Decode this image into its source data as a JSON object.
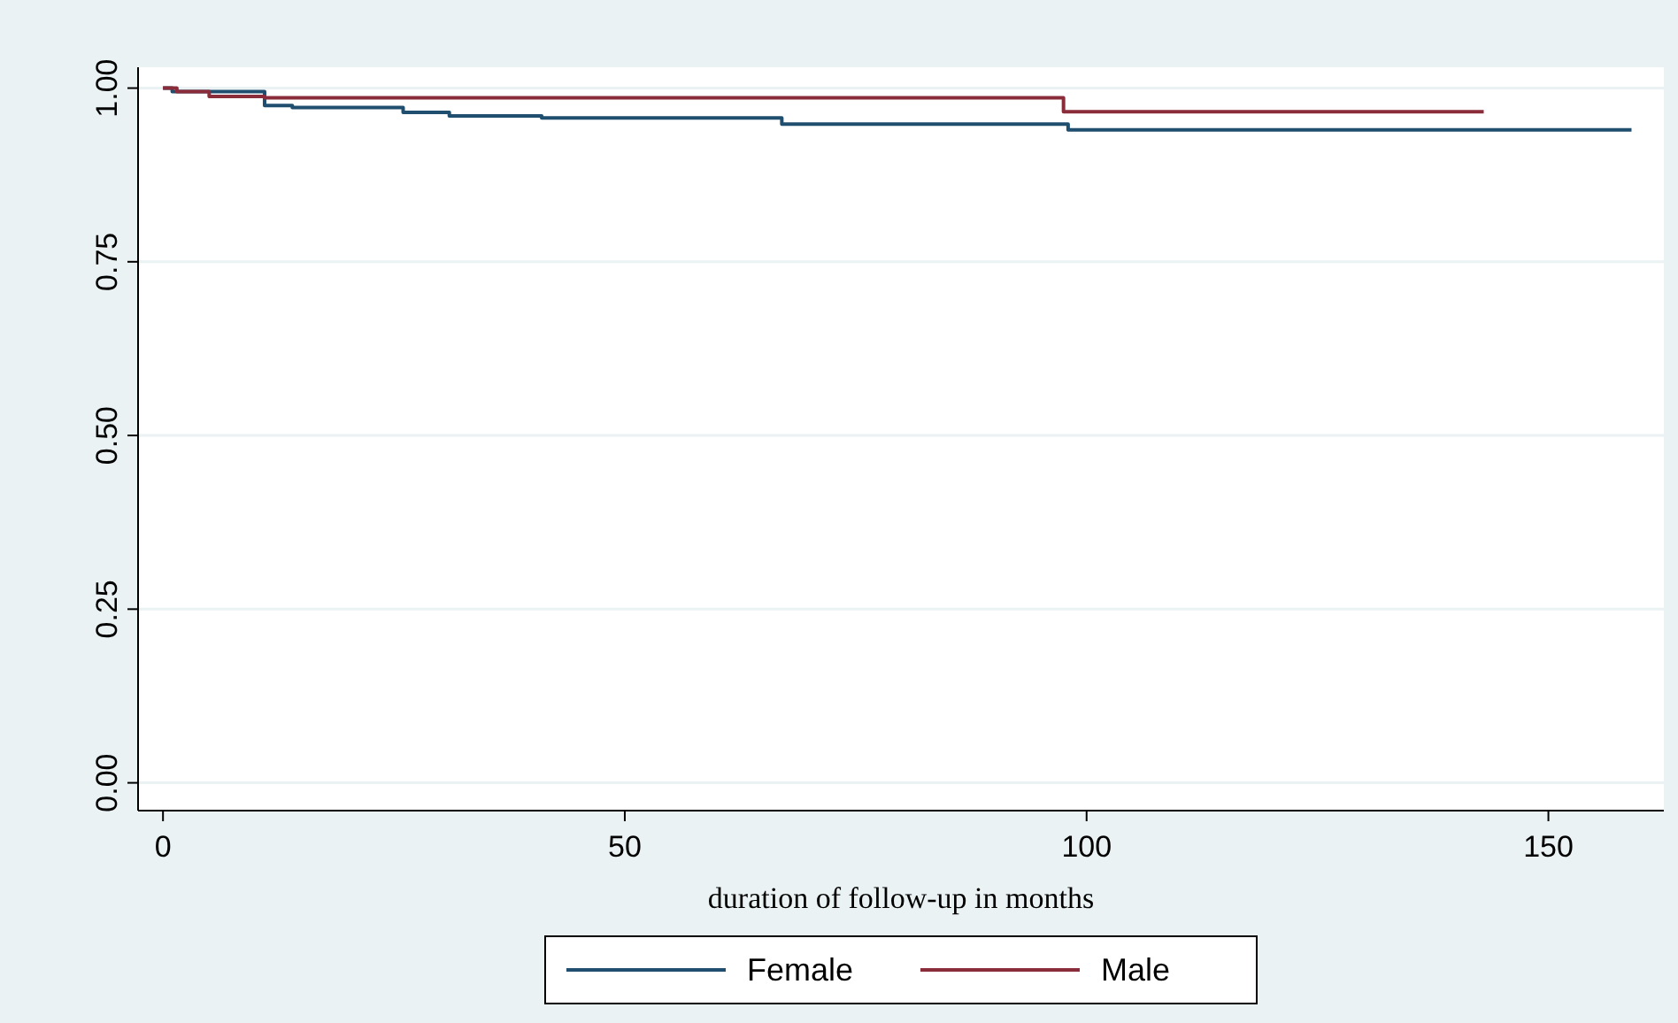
{
  "chart_data": {
    "type": "step",
    "xlabel": "duration of follow-up in months",
    "xlim": [
      -2.7,
      162.5
    ],
    "xticks": [
      0,
      50,
      100,
      150
    ],
    "ylim": [
      -0.04,
      1.03
    ],
    "yticks": [
      {
        "value": 0,
        "label": "0.00"
      },
      {
        "value": 0.25,
        "label": "0.25"
      },
      {
        "value": 0.5,
        "label": "0.50"
      },
      {
        "value": 0.75,
        "label": "0.75"
      },
      {
        "value": 1,
        "label": "1.00"
      }
    ],
    "grid": "y",
    "legend": "bottom",
    "series": [
      {
        "name": "Female",
        "color": "#1f4e6e",
        "x": [
          0,
          1,
          11,
          14,
          26,
          31,
          41,
          67,
          98,
          159
        ],
        "values": [
          1,
          0.995,
          0.975,
          0.972,
          0.965,
          0.96,
          0.957,
          0.948,
          0.94,
          0.94
        ]
      },
      {
        "name": "Male",
        "color": "#8b2c3a",
        "x": [
          0,
          1.5,
          5,
          11,
          97.5,
          143
        ],
        "values": [
          1,
          0.995,
          0.988,
          0.986,
          0.966,
          0.966
        ]
      }
    ]
  }
}
